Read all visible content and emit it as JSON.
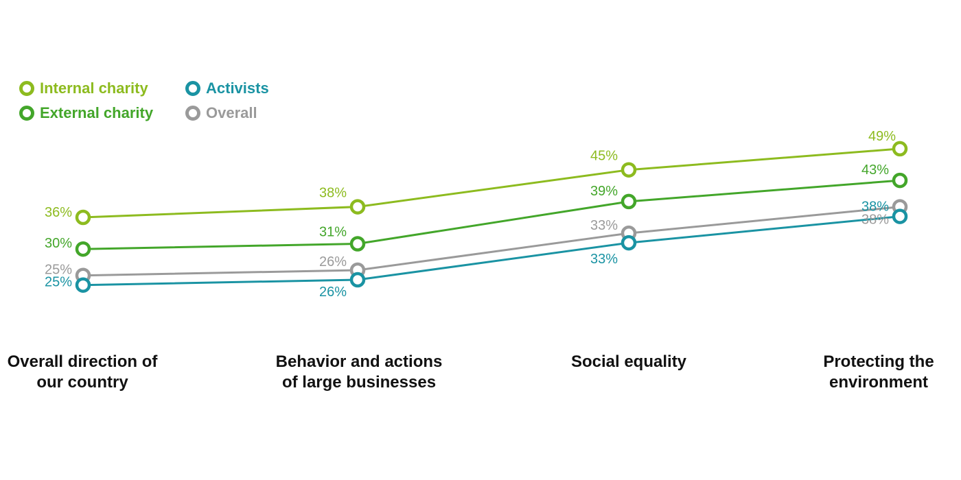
{
  "chart_data": {
    "type": "line",
    "categories": [
      [
        "Overall direction of",
        "our country"
      ],
      [
        "Behavior and actions",
        "of large businesses"
      ],
      [
        "Social equality"
      ],
      [
        "Protecting the",
        "environment"
      ]
    ],
    "series": [
      {
        "name": "Internal charity",
        "color": "#8dbb1f",
        "values": [
          36,
          38,
          45,
          49
        ],
        "labels": [
          "36%",
          "38%",
          "45%",
          "49%"
        ]
      },
      {
        "name": "External charity",
        "color": "#43a62a",
        "values": [
          30,
          31,
          39,
          43
        ],
        "labels": [
          "30%",
          "31%",
          "39%",
          "43%"
        ]
      },
      {
        "name": "Activists",
        "color": "#1a93a3",
        "values": [
          25,
          26,
          33,
          38
        ],
        "labels": [
          "25%",
          "26%",
          "33%",
          "38%"
        ]
      },
      {
        "name": "Overall",
        "color": "#9a9a9a",
        "values": [
          25,
          26,
          33,
          38
        ],
        "labels": [
          "25%",
          "26%",
          "33%",
          "38%"
        ]
      }
    ],
    "legend_position": "top-left",
    "grid": false
  }
}
